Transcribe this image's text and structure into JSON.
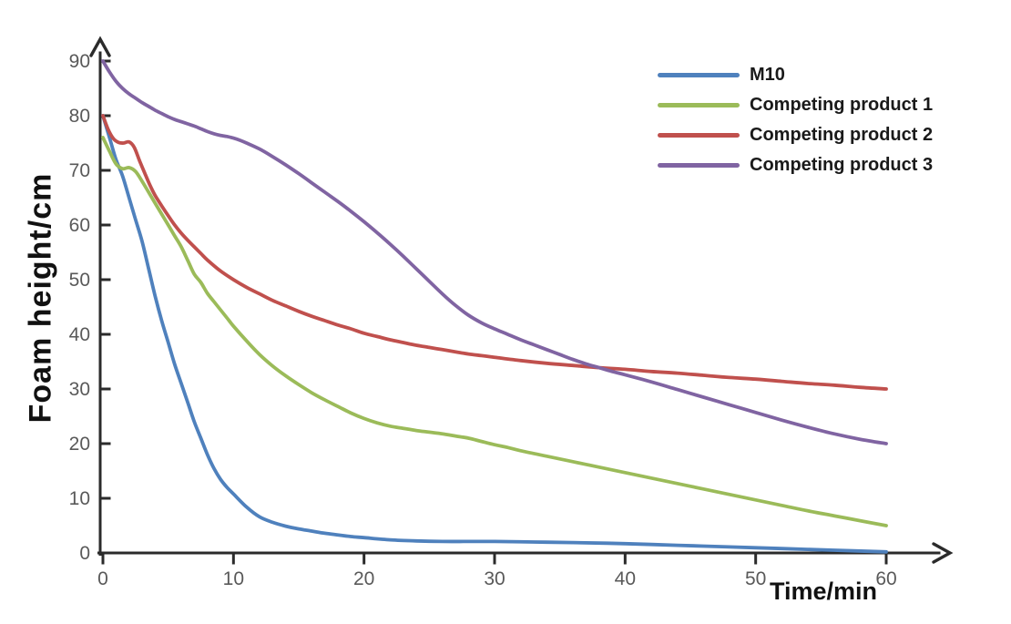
{
  "chart_data": {
    "type": "line",
    "title": "",
    "xlabel": "Time/min",
    "ylabel": "Foam height/cm",
    "xlim": [
      0,
      60
    ],
    "ylim": [
      0,
      90
    ],
    "x_ticks": [
      0,
      10,
      20,
      30,
      40,
      50,
      60
    ],
    "y_ticks": [
      0,
      10,
      20,
      30,
      40,
      50,
      60,
      70,
      80,
      90
    ],
    "grid": false,
    "legend_position": "top-right",
    "axis_color": "#2b2b2b",
    "tick_label_color": "#595959",
    "series": [
      {
        "name": "M10",
        "color": "#4F81BD",
        "points": [
          [
            0,
            80
          ],
          [
            0.5,
            76
          ],
          [
            1,
            72
          ],
          [
            1.5,
            69
          ],
          [
            2,
            65
          ],
          [
            2.5,
            61
          ],
          [
            3,
            57
          ],
          [
            3.5,
            52
          ],
          [
            4,
            47
          ],
          [
            4.5,
            42.5
          ],
          [
            5,
            38.5
          ],
          [
            5.5,
            34.5
          ],
          [
            6,
            31
          ],
          [
            6.5,
            27.5
          ],
          [
            7,
            24
          ],
          [
            7.5,
            21
          ],
          [
            8,
            18
          ],
          [
            8.5,
            15.5
          ],
          [
            9,
            13.5
          ],
          [
            9.5,
            12
          ],
          [
            10,
            10.8
          ],
          [
            11,
            8.4
          ],
          [
            12,
            6.6
          ],
          [
            13,
            5.6
          ],
          [
            14,
            4.9
          ],
          [
            15,
            4.4
          ],
          [
            16,
            4
          ],
          [
            17,
            3.6
          ],
          [
            18,
            3.3
          ],
          [
            19,
            3
          ],
          [
            20,
            2.8
          ],
          [
            22,
            2.4
          ],
          [
            24,
            2.2
          ],
          [
            26,
            2.1
          ],
          [
            28,
            2.1
          ],
          [
            30,
            2.1
          ],
          [
            33,
            2
          ],
          [
            36,
            1.9
          ],
          [
            40,
            1.7
          ],
          [
            44,
            1.4
          ],
          [
            48,
            1.1
          ],
          [
            52,
            0.8
          ],
          [
            56,
            0.5
          ],
          [
            60,
            0.2
          ]
        ]
      },
      {
        "name": "Competing product 1",
        "color": "#9BBB59",
        "points": [
          [
            0,
            76
          ],
          [
            0.5,
            73.5
          ],
          [
            1,
            71.2
          ],
          [
            1.5,
            70.3
          ],
          [
            2,
            70.5
          ],
          [
            2.5,
            69.8
          ],
          [
            3,
            68
          ],
          [
            3.5,
            66
          ],
          [
            4,
            64
          ],
          [
            4.5,
            62
          ],
          [
            5,
            60
          ],
          [
            5.5,
            58
          ],
          [
            6,
            56
          ],
          [
            6.5,
            53.5
          ],
          [
            7,
            51
          ],
          [
            7.5,
            49.5
          ],
          [
            8,
            47.5
          ],
          [
            8.5,
            46
          ],
          [
            9,
            44.5
          ],
          [
            9.5,
            43
          ],
          [
            10,
            41.5
          ],
          [
            11,
            38.8
          ],
          [
            12,
            36.3
          ],
          [
            13,
            34.2
          ],
          [
            14,
            32.4
          ],
          [
            15,
            30.8
          ],
          [
            16,
            29.3
          ],
          [
            17,
            28
          ],
          [
            18,
            26.8
          ],
          [
            19,
            25.6
          ],
          [
            20,
            24.6
          ],
          [
            21,
            23.8
          ],
          [
            22,
            23.2
          ],
          [
            23,
            22.8
          ],
          [
            24,
            22.4
          ],
          [
            25,
            22.1
          ],
          [
            26,
            21.8
          ],
          [
            27,
            21.4
          ],
          [
            28,
            21
          ],
          [
            29,
            20.4
          ],
          [
            30,
            19.8
          ],
          [
            31,
            19.3
          ],
          [
            32,
            18.7
          ],
          [
            34,
            17.7
          ],
          [
            36,
            16.7
          ],
          [
            38,
            15.7
          ],
          [
            40,
            14.7
          ],
          [
            42,
            13.7
          ],
          [
            44,
            12.7
          ],
          [
            46,
            11.7
          ],
          [
            48,
            10.7
          ],
          [
            50,
            9.7
          ],
          [
            52,
            8.7
          ],
          [
            54,
            7.7
          ],
          [
            56,
            6.8
          ],
          [
            58,
            5.9
          ],
          [
            60,
            5
          ]
        ]
      },
      {
        "name": "Competing product 2",
        "color": "#C0504D",
        "points": [
          [
            0,
            80
          ],
          [
            0.4,
            77.5
          ],
          [
            0.8,
            75.8
          ],
          [
            1.2,
            75.1
          ],
          [
            1.6,
            75
          ],
          [
            2,
            75.2
          ],
          [
            2.4,
            74.2
          ],
          [
            2.8,
            71.8
          ],
          [
            3.2,
            69.5
          ],
          [
            3.6,
            67.3
          ],
          [
            4,
            65.4
          ],
          [
            4.5,
            63.5
          ],
          [
            5,
            61.7
          ],
          [
            5.5,
            60
          ],
          [
            6,
            58.5
          ],
          [
            6.5,
            57.2
          ],
          [
            7,
            56
          ],
          [
            7.5,
            54.8
          ],
          [
            8,
            53.6
          ],
          [
            9,
            51.6
          ],
          [
            10,
            50
          ],
          [
            11,
            48.6
          ],
          [
            12,
            47.4
          ],
          [
            13,
            46.2
          ],
          [
            14,
            45.2
          ],
          [
            15,
            44.2
          ],
          [
            16,
            43.3
          ],
          [
            17,
            42.5
          ],
          [
            18,
            41.7
          ],
          [
            19,
            41
          ],
          [
            20,
            40.2
          ],
          [
            21,
            39.6
          ],
          [
            22,
            39
          ],
          [
            23,
            38.5
          ],
          [
            24,
            38
          ],
          [
            25,
            37.6
          ],
          [
            26,
            37.2
          ],
          [
            27,
            36.8
          ],
          [
            28,
            36.4
          ],
          [
            29,
            36.1
          ],
          [
            30,
            35.8
          ],
          [
            32,
            35.2
          ],
          [
            34,
            34.7
          ],
          [
            36,
            34.3
          ],
          [
            38,
            33.9
          ],
          [
            40,
            33.6
          ],
          [
            42,
            33.2
          ],
          [
            44,
            32.9
          ],
          [
            46,
            32.5
          ],
          [
            48,
            32.1
          ],
          [
            50,
            31.8
          ],
          [
            52,
            31.4
          ],
          [
            54,
            31
          ],
          [
            56,
            30.7
          ],
          [
            58,
            30.3
          ],
          [
            60,
            30
          ]
        ]
      },
      {
        "name": "Competing product 3",
        "color": "#8064A2",
        "points": [
          [
            0,
            90
          ],
          [
            0.5,
            88
          ],
          [
            1,
            86.3
          ],
          [
            1.5,
            85
          ],
          [
            2,
            84
          ],
          [
            2.5,
            83.2
          ],
          [
            3,
            82.4
          ],
          [
            3.5,
            81.7
          ],
          [
            4,
            81
          ],
          [
            4.5,
            80.4
          ],
          [
            5,
            79.8
          ],
          [
            5.5,
            79.3
          ],
          [
            6,
            78.9
          ],
          [
            6.5,
            78.5
          ],
          [
            7,
            78.1
          ],
          [
            7.5,
            77.6
          ],
          [
            8,
            77.1
          ],
          [
            8.5,
            76.7
          ],
          [
            9,
            76.4
          ],
          [
            9.5,
            76.2
          ],
          [
            10,
            75.9
          ],
          [
            10.5,
            75.5
          ],
          [
            11,
            75
          ],
          [
            12,
            73.9
          ],
          [
            13,
            72.5
          ],
          [
            14,
            71
          ],
          [
            15,
            69.4
          ],
          [
            16,
            67.7
          ],
          [
            17,
            66
          ],
          [
            18,
            64.3
          ],
          [
            19,
            62.5
          ],
          [
            20,
            60.6
          ],
          [
            21,
            58.6
          ],
          [
            22,
            56.5
          ],
          [
            23,
            54.3
          ],
          [
            24,
            52
          ],
          [
            25,
            49.7
          ],
          [
            26,
            47.4
          ],
          [
            27,
            45.3
          ],
          [
            28,
            43.5
          ],
          [
            29,
            42.1
          ],
          [
            30,
            41
          ],
          [
            31,
            40
          ],
          [
            32,
            39
          ],
          [
            33,
            38.1
          ],
          [
            34,
            37.2
          ],
          [
            35,
            36.3
          ],
          [
            36,
            35.4
          ],
          [
            37,
            34.6
          ],
          [
            38,
            33.9
          ],
          [
            39,
            33.2
          ],
          [
            40,
            32.6
          ],
          [
            42,
            31.3
          ],
          [
            44,
            29.9
          ],
          [
            46,
            28.5
          ],
          [
            48,
            27.1
          ],
          [
            50,
            25.7
          ],
          [
            52,
            24.3
          ],
          [
            54,
            23
          ],
          [
            56,
            21.8
          ],
          [
            58,
            20.8
          ],
          [
            60,
            20
          ]
        ]
      }
    ]
  }
}
